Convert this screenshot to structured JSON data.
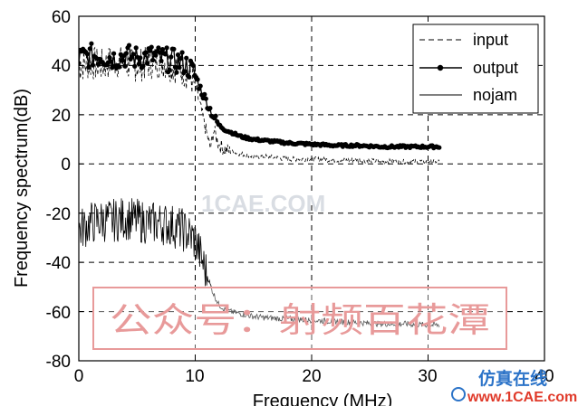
{
  "chart_data": {
    "type": "line",
    "title": "",
    "xlabel": "Frequency (MHz)",
    "ylabel": "Frequency spectrum(dB)",
    "xlim": [
      0,
      40
    ],
    "ylim": [
      -80,
      60
    ],
    "x_ticks": [
      "0",
      "10",
      "20",
      "30",
      "40"
    ],
    "y_ticks": [
      "60",
      "40",
      "20",
      "0",
      "-20",
      "-40",
      "-60",
      "-80"
    ],
    "grid": true,
    "legend_position": "top-right",
    "series": [
      {
        "name": "input",
        "style": "dashed",
        "x": [
          0,
          1,
          2,
          3,
          4,
          5,
          6,
          7,
          8,
          9,
          9.5,
          10,
          10.5,
          11,
          11.3,
          11.6,
          12,
          12.5,
          13,
          14,
          15,
          16,
          18,
          20,
          22,
          24,
          26,
          28,
          30,
          31
        ],
        "y": [
          40,
          41,
          40,
          42,
          41,
          40,
          41,
          42,
          40,
          38,
          36,
          32,
          22,
          12,
          6,
          14,
          8,
          6,
          5,
          4,
          3,
          3,
          2,
          2,
          1.5,
          1.5,
          1,
          1,
          1,
          1
        ]
      },
      {
        "name": "output",
        "style": "solid-dots",
        "x": [
          0,
          1,
          2,
          3,
          4,
          5,
          6,
          7,
          8,
          9,
          9.5,
          10,
          10.5,
          11,
          11.5,
          12,
          12.5,
          13,
          14,
          15,
          16,
          18,
          20,
          22,
          24,
          26,
          28,
          30,
          31
        ],
        "y": [
          43,
          44,
          44,
          43,
          44,
          43,
          44,
          43,
          42,
          41,
          39,
          36,
          30,
          25,
          20,
          16,
          14,
          13,
          11,
          10,
          9.5,
          8.5,
          8,
          7.5,
          7.5,
          7,
          7,
          7,
          7
        ]
      },
      {
        "name": "nojam",
        "style": "solid",
        "x": [
          0,
          1,
          2,
          3,
          4,
          5,
          6,
          7,
          8,
          9,
          10,
          10.5,
          11,
          11.5,
          12,
          12.5,
          13,
          14,
          15,
          16,
          18,
          20,
          22,
          24,
          26,
          28,
          30,
          31
        ],
        "y": [
          -27,
          -24,
          -23,
          -23,
          -22,
          -23,
          -24,
          -24,
          -25,
          -27,
          -31,
          -38,
          -45,
          -52,
          -57,
          -59,
          -60,
          -61,
          -62,
          -62.5,
          -63,
          -63.5,
          -64,
          -64.5,
          -65,
          -65,
          -65.5,
          -65.5
        ]
      }
    ]
  },
  "watermarks": {
    "main": "公众号：射频百花潭",
    "faint": "1CAE.COM",
    "corner_top": "仿真在线",
    "corner_bottom": "www.1CAE.com"
  },
  "colors": {
    "line": "#000000",
    "grid": "#000000",
    "watermark_box": "#e89a9a",
    "watermark_text": "#e89a9a",
    "corner_blue": "#2b73c8",
    "corner_red": "#e03a2a"
  }
}
